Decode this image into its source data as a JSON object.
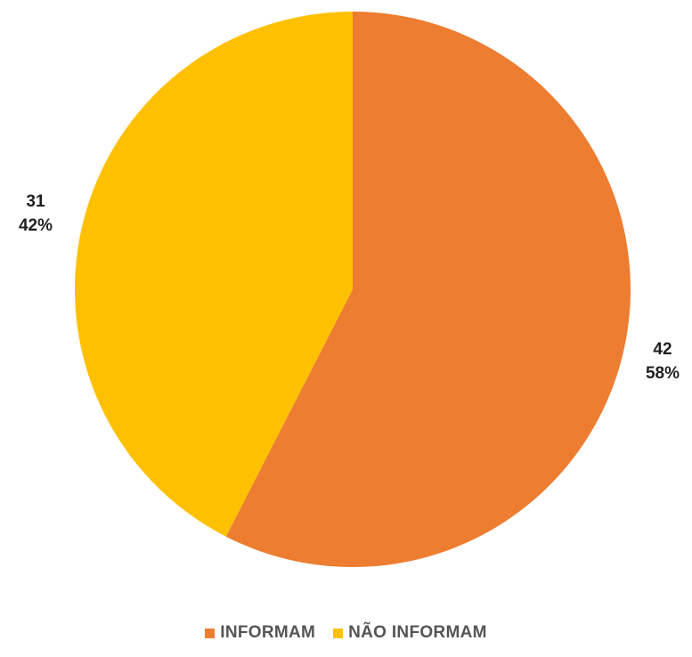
{
  "chart_data": {
    "type": "pie",
    "title": "",
    "slices": [
      {
        "label": "INFORMAM",
        "value": 42,
        "percent": "58%",
        "color": "#ED7D31"
      },
      {
        "label": "NÃO INFORMAM",
        "value": 31,
        "percent": "42%",
        "color": "#FFC000"
      }
    ],
    "start_angle": "12 o'clock",
    "direction": "clockwise",
    "legend": "bottom-center"
  }
}
